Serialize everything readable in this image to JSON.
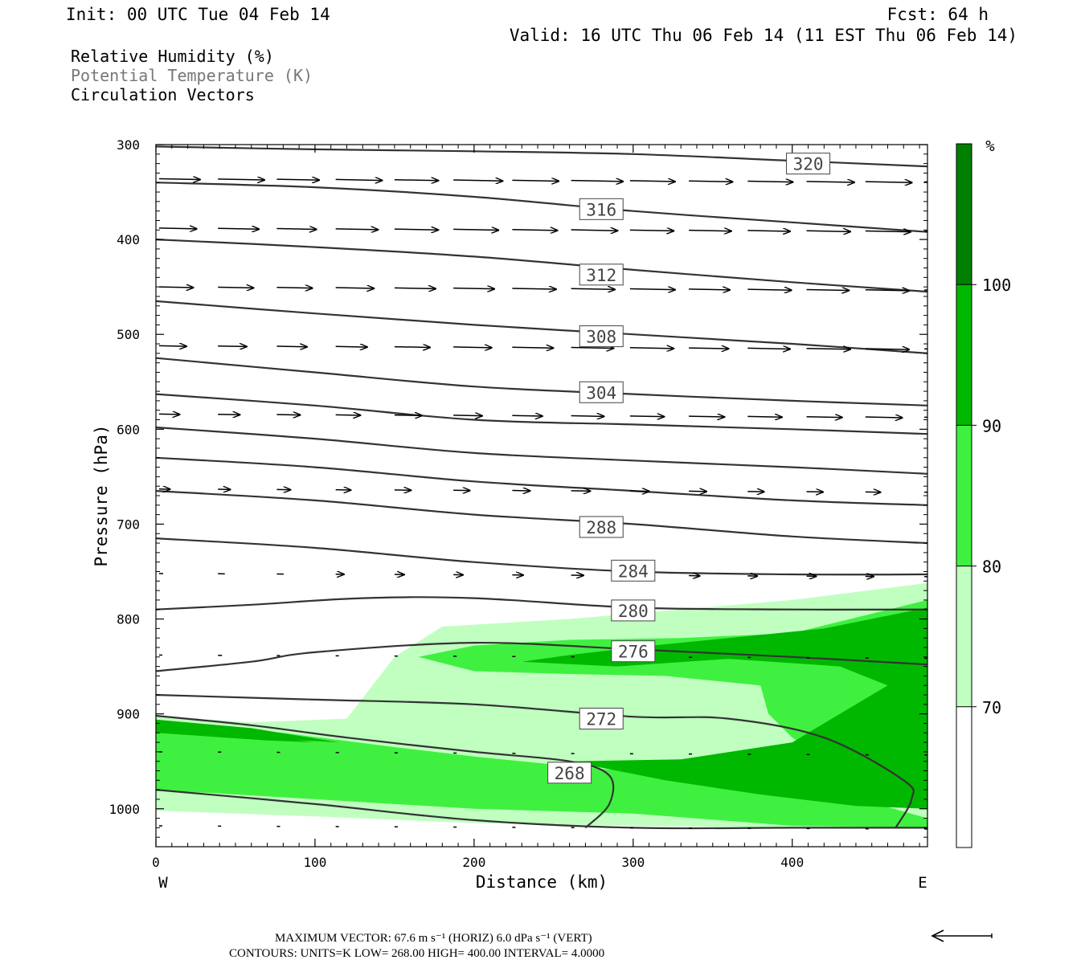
{
  "header": {
    "init": "Init: 00 UTC Tue 04 Feb 14",
    "fcst": "Fcst:   64 h",
    "valid": "Valid: 16 UTC Thu 06 Feb 14 (11 EST Thu 06 Feb 14)",
    "fields": [
      "Relative Humidity (%)",
      "Potential Temperature (K)",
      "Circulation Vectors"
    ]
  },
  "chart_data": {
    "type": "cross-section",
    "xlabel": "Distance (km)",
    "ylabel": "Pressure (hPa)",
    "xlim": [
      0,
      485
    ],
    "ylim": [
      1040,
      300
    ],
    "x_ticks": [
      "0",
      "100",
      "200",
      "300",
      "400"
    ],
    "y_ticks": [
      "300",
      "400",
      "500",
      "600",
      "700",
      "800",
      "900",
      "1000"
    ],
    "x_end_labels": {
      "left": "W",
      "right": "E"
    },
    "colorbar": {
      "unit": "%",
      "levels": [
        "70",
        "80",
        "90",
        "100"
      ],
      "colors": [
        "#ffffff",
        "#c0ffc0",
        "#40f040",
        "#00b800",
        "#008000"
      ]
    },
    "rh_fill": [
      {
        "color": "#c0ffc0",
        "points": [
          [
            0,
            902
          ],
          [
            60,
            909
          ],
          [
            120,
            905
          ],
          [
            150,
            840
          ],
          [
            180,
            808
          ],
          [
            260,
            800
          ],
          [
            330,
            790
          ],
          [
            400,
            780
          ],
          [
            485,
            762
          ],
          [
            485,
            1018
          ],
          [
            400,
            1020
          ],
          [
            300,
            1018
          ],
          [
            200,
            1015
          ],
          [
            100,
            1008
          ],
          [
            0,
            1002
          ]
        ]
      },
      {
        "color": "#40f040",
        "points": [
          [
            0,
            910
          ],
          [
            80,
            920
          ],
          [
            150,
            935
          ],
          [
            200,
            945
          ],
          [
            260,
            955
          ],
          [
            330,
            965
          ],
          [
            400,
            970
          ],
          [
            485,
            1010
          ],
          [
            485,
            1020
          ],
          [
            400,
            1018
          ],
          [
            300,
            1005
          ],
          [
            200,
            1000
          ],
          [
            100,
            990
          ],
          [
            0,
            980
          ]
        ]
      },
      {
        "color": "#40f040",
        "points": [
          [
            165,
            840
          ],
          [
            200,
            828
          ],
          [
            260,
            822
          ],
          [
            330,
            820
          ],
          [
            400,
            815
          ],
          [
            485,
            780
          ],
          [
            485,
            1000
          ],
          [
            430,
            955
          ],
          [
            400,
            925
          ],
          [
            385,
            900
          ],
          [
            380,
            870
          ],
          [
            320,
            860
          ],
          [
            260,
            858
          ],
          [
            200,
            855
          ]
        ]
      },
      {
        "color": "#00b800",
        "points": [
          [
            0,
            906
          ],
          [
            60,
            915
          ],
          [
            115,
            930
          ],
          [
            60,
            925
          ],
          [
            0,
            918
          ]
        ]
      },
      {
        "color": "#00b800",
        "points": [
          [
            230,
            845
          ],
          [
            260,
            838
          ],
          [
            300,
            830
          ],
          [
            360,
            820
          ],
          [
            420,
            810
          ],
          [
            485,
            788
          ],
          [
            485,
            1000
          ],
          [
            440,
            997
          ],
          [
            380,
            985
          ],
          [
            320,
            970
          ],
          [
            260,
            950
          ],
          [
            330,
            948
          ],
          [
            400,
            930
          ],
          [
            430,
            900
          ],
          [
            460,
            870
          ],
          [
            430,
            850
          ],
          [
            360,
            842
          ],
          [
            290,
            850
          ]
        ]
      },
      {
        "color": "#00b800",
        "points": [
          [
            0,
            913
          ],
          [
            50,
            920
          ],
          [
            100,
            930
          ],
          [
            70,
            928
          ],
          [
            0,
            920
          ]
        ]
      }
    ],
    "theta_contours": [
      {
        "label": "320",
        "label_at": [
          410,
          320
        ],
        "points": [
          [
            0,
            302
          ],
          [
            100,
            305
          ],
          [
            200,
            307
          ],
          [
            300,
            310
          ],
          [
            400,
            317
          ],
          [
            485,
            323
          ]
        ]
      },
      {
        "label": "316",
        "label_at": [
          280,
          368
        ],
        "points": [
          [
            0,
            340
          ],
          [
            100,
            345
          ],
          [
            200,
            355
          ],
          [
            300,
            370
          ],
          [
            400,
            382
          ],
          [
            485,
            392
          ]
        ]
      },
      {
        "label": "",
        "label_at": null,
        "points": [
          [
            0,
            400
          ],
          [
            100,
            408
          ],
          [
            200,
            418
          ],
          [
            300,
            432
          ],
          [
            400,
            445
          ],
          [
            485,
            455
          ]
        ]
      },
      {
        "label": "312",
        "label_at": [
          280,
          437
        ],
        "points": [
          [
            0,
            465
          ],
          [
            100,
            478
          ],
          [
            200,
            490
          ],
          [
            300,
            500
          ],
          [
            400,
            510
          ],
          [
            485,
            520
          ]
        ]
      },
      {
        "label": "308",
        "label_at": [
          280,
          502
        ],
        "points": [
          [
            0,
            525
          ],
          [
            100,
            540
          ],
          [
            200,
            555
          ],
          [
            300,
            563
          ],
          [
            400,
            570
          ],
          [
            485,
            575
          ]
        ]
      },
      {
        "label": "304",
        "label_at": [
          280,
          561
        ],
        "points": [
          [
            0,
            563
          ],
          [
            100,
            575
          ],
          [
            200,
            590
          ],
          [
            300,
            595
          ],
          [
            400,
            600
          ],
          [
            485,
            605
          ]
        ]
      },
      {
        "label": "",
        "label_at": null,
        "points": [
          [
            0,
            598
          ],
          [
            100,
            610
          ],
          [
            200,
            625
          ],
          [
            300,
            633
          ],
          [
            400,
            640
          ],
          [
            485,
            647
          ]
        ]
      },
      {
        "label": "",
        "label_at": null,
        "points": [
          [
            0,
            630
          ],
          [
            100,
            640
          ],
          [
            200,
            655
          ],
          [
            300,
            665
          ],
          [
            400,
            675
          ],
          [
            485,
            680
          ]
        ]
      },
      {
        "label": "288",
        "label_at": [
          280,
          703
        ],
        "points": [
          [
            0,
            665
          ],
          [
            100,
            675
          ],
          [
            200,
            690
          ],
          [
            300,
            700
          ],
          [
            400,
            713
          ],
          [
            485,
            720
          ]
        ]
      },
      {
        "label": "284",
        "label_at": [
          300,
          749
        ],
        "points": [
          [
            0,
            715
          ],
          [
            100,
            725
          ],
          [
            200,
            740
          ],
          [
            300,
            750
          ],
          [
            400,
            753
          ],
          [
            485,
            753
          ]
        ]
      },
      {
        "label": "280",
        "label_at": [
          300,
          791
        ],
        "points": [
          [
            0,
            790
          ],
          [
            60,
            785
          ],
          [
            130,
            778
          ],
          [
            200,
            778
          ],
          [
            300,
            788
          ],
          [
            400,
            790
          ],
          [
            485,
            790
          ]
        ]
      },
      {
        "label": "276",
        "label_at": [
          300,
          834
        ],
        "points": [
          [
            0,
            855
          ],
          [
            60,
            845
          ],
          [
            100,
            835
          ],
          [
            200,
            825
          ],
          [
            300,
            832
          ],
          [
            400,
            840
          ],
          [
            485,
            848
          ]
        ]
      },
      {
        "label": "272",
        "label_at": [
          280,
          905
        ],
        "points": [
          [
            0,
            880
          ],
          [
            100,
            885
          ],
          [
            200,
            890
          ],
          [
            300,
            903
          ],
          [
            360,
            905
          ],
          [
            420,
            925
          ],
          [
            470,
            970
          ],
          [
            475,
            990
          ],
          [
            465,
            1020
          ]
        ]
      },
      {
        "label": "268",
        "label_at": [
          260,
          962
        ],
        "points": [
          [
            0,
            902
          ],
          [
            60,
            912
          ],
          [
            120,
            925
          ],
          [
            200,
            940
          ],
          [
            260,
            950
          ],
          [
            285,
            965
          ],
          [
            285,
            995
          ],
          [
            270,
            1020
          ]
        ]
      },
      {
        "label": "",
        "label_at": null,
        "points": [
          [
            0,
            980
          ],
          [
            100,
            995
          ],
          [
            200,
            1012
          ],
          [
            300,
            1020
          ],
          [
            400,
            1020
          ],
          [
            485,
            1020
          ]
        ]
      }
    ],
    "vectors": [
      {
        "p": 336,
        "u": [
          60,
          68,
          62,
          68,
          64,
          72,
          68,
          76,
          66,
          64,
          66,
          70,
          68,
          70
        ],
        "heads": [
          2,
          3,
          6
        ]
      },
      {
        "p": 388,
        "u": [
          55,
          60,
          58,
          62,
          64,
          66,
          66,
          68,
          64,
          62,
          62,
          64,
          66,
          68
        ],
        "heads": []
      },
      {
        "p": 450,
        "u": [
          50,
          52,
          52,
          56,
          60,
          60,
          64,
          64,
          66,
          60,
          64,
          62,
          64,
          58
        ],
        "heads": []
      },
      {
        "p": 512,
        "u": [
          40,
          42,
          44,
          46,
          52,
          56,
          60,
          62,
          64,
          58,
          62,
          64,
          64,
          62
        ],
        "heads": []
      },
      {
        "p": 584,
        "u": [
          30,
          32,
          34,
          36,
          40,
          42,
          44,
          48,
          50,
          52,
          50,
          52,
          54,
          52
        ],
        "heads": []
      },
      {
        "p": 663,
        "u": [
          16,
          18,
          20,
          22,
          24,
          24,
          26,
          28,
          28,
          26,
          24,
          24,
          22,
          20
        ],
        "heads": []
      },
      {
        "p": 752,
        "u": [
          6,
          10,
          10,
          12,
          14,
          14,
          16,
          18,
          18,
          16,
          14,
          14,
          12,
          10
        ],
        "heads": []
      },
      {
        "p": 838,
        "u": [
          4,
          6,
          4,
          4,
          3,
          2,
          2,
          2,
          2,
          2,
          2,
          2,
          2,
          2
        ],
        "heads": []
      },
      {
        "p": 940,
        "u": [
          2,
          2,
          2,
          2,
          2,
          2,
          2,
          2,
          2,
          2,
          2,
          2,
          2,
          2
        ],
        "heads": []
      },
      {
        "p": 1018,
        "u": [
          2,
          2,
          2,
          2,
          2,
          2,
          2,
          2,
          2,
          2,
          2,
          2,
          2,
          2
        ],
        "heads": []
      }
    ]
  },
  "footer": {
    "max_vector": "MAXIMUM VECTOR:  67.6 m s⁻¹ (HORIZ)          6.0 dPa s⁻¹ (VERT)",
    "contours": "CONTOURS:  UNITS=K  LOW=  268.00        HIGH=  400.00        INTERVAL=    4.0000"
  }
}
